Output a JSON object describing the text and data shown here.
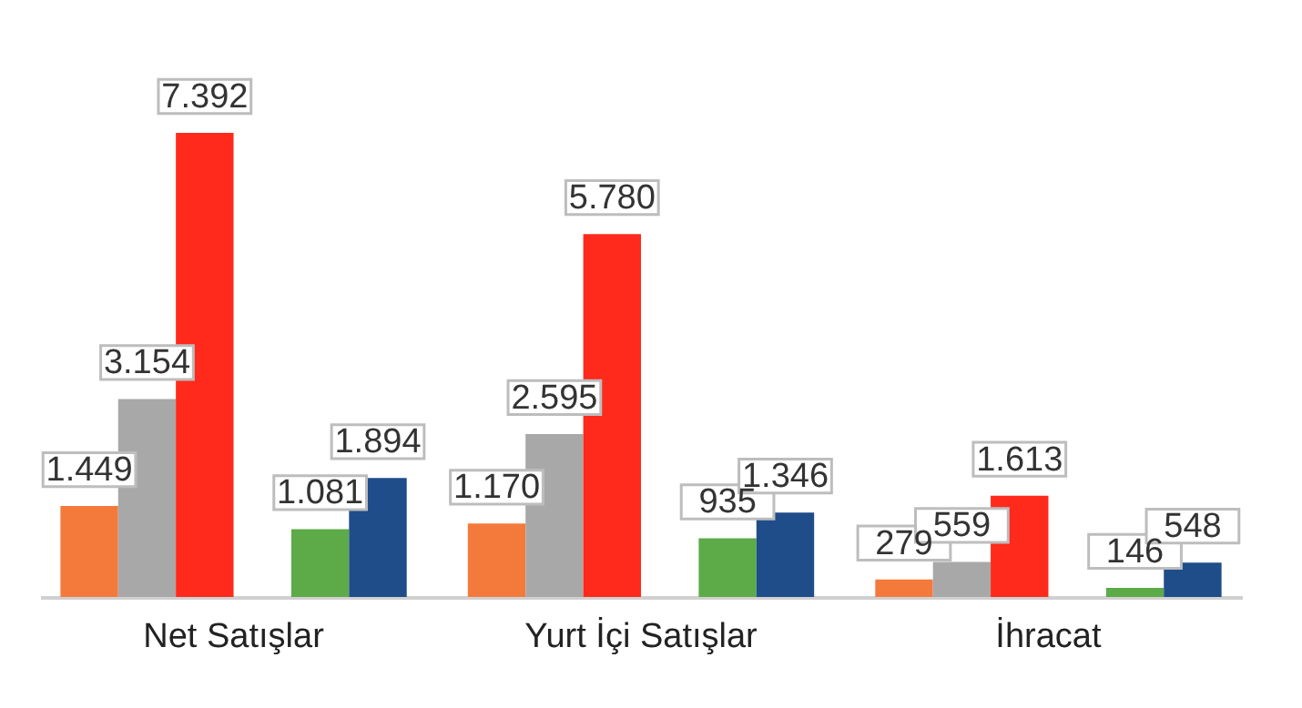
{
  "chart_data": {
    "type": "bar",
    "categories": [
      "Net Satışlar",
      "Yurt İçi Satışlar",
      "İhracat"
    ],
    "series": [
      {
        "color": "#f47a3c",
        "values": [
          1449,
          1170,
          279
        ],
        "value_labels": [
          "1.449",
          "1.170",
          "279"
        ]
      },
      {
        "color": "#a8a8a8",
        "values": [
          3154,
          2595,
          559
        ],
        "value_labels": [
          "3.154",
          "2.595",
          "559"
        ]
      },
      {
        "color": "#ff2a1c",
        "values": [
          7392,
          5780,
          1613
        ],
        "value_labels": [
          "7.392",
          "5.780",
          "1.613"
        ]
      },
      {
        "color": "#5cab48",
        "values": [
          1081,
          935,
          146
        ],
        "value_labels": [
          "1.081",
          "935",
          "146"
        ]
      },
      {
        "color": "#1f4d8a",
        "values": [
          1894,
          1346,
          548
        ],
        "value_labels": [
          "1.894",
          "1.346",
          "548"
        ]
      }
    ],
    "legend": false,
    "grid": false
  }
}
